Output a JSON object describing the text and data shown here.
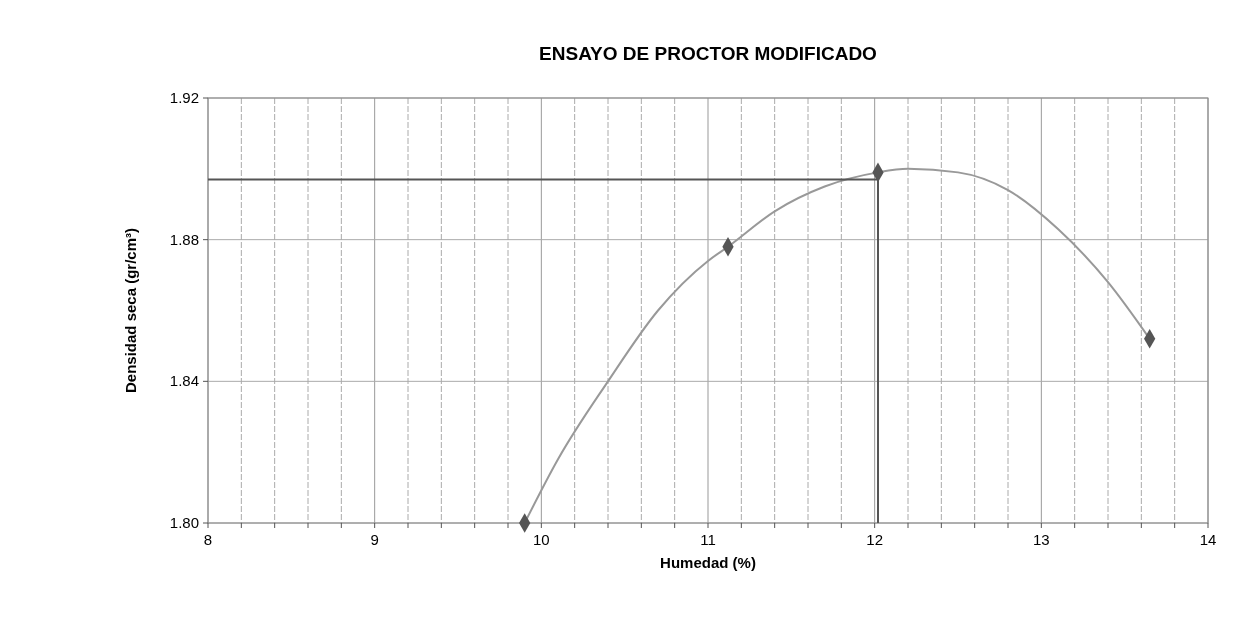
{
  "chart_data": {
    "type": "scatter",
    "title": "ENSAYO DE PROCTOR MODIFICADO",
    "xlabel": "Humedad (%)",
    "ylabel": "Densidad seca (gr/cm³)",
    "xlim": [
      8,
      14
    ],
    "ylim": [
      1.8,
      1.92
    ],
    "xticks": [
      8,
      {
        "value": 8.2,
        "label": null
      },
      {
        "value": 8.4,
        "label": null
      },
      {
        "value": 8.6,
        "label": null
      },
      {
        "value": 8.8,
        "label": null
      },
      9,
      {
        "value": 9.2,
        "label": null
      },
      {
        "value": 9.4,
        "label": null
      },
      {
        "value": 9.6,
        "label": null
      },
      {
        "value": 9.8,
        "label": null
      },
      10,
      {
        "value": 10.2,
        "label": null
      },
      {
        "value": 10.4,
        "label": null
      },
      {
        "value": 10.6,
        "label": null
      },
      {
        "value": 10.8,
        "label": null
      },
      11,
      {
        "value": 11.2,
        "label": null
      },
      {
        "value": 11.4,
        "label": null
      },
      {
        "value": 11.6,
        "label": null
      },
      {
        "value": 11.8,
        "label": null
      },
      12,
      {
        "value": 12.2,
        "label": null
      },
      {
        "value": 12.4,
        "label": null
      },
      {
        "value": 12.6,
        "label": null
      },
      {
        "value": 12.8,
        "label": null
      },
      13,
      {
        "value": 13.2,
        "label": null
      },
      {
        "value": 13.4,
        "label": null
      },
      {
        "value": 13.6,
        "label": null
      },
      {
        "value": 13.8,
        "label": null
      },
      14
    ],
    "yticks": [
      {
        "value": 1.8,
        "label": "1.80"
      },
      1.84,
      1.88,
      1.92
    ],
    "grid": true,
    "series": [
      {
        "type": "line",
        "color": "#999999",
        "marker": "none",
        "x": [
          9.9,
          10.1,
          10.4,
          10.7,
          11.0,
          11.12,
          11.4,
          11.7,
          12.02,
          12.2,
          12.5,
          12.8,
          13.1,
          13.4,
          13.65
        ],
        "values": [
          1.8,
          1.818,
          1.84,
          1.86,
          1.874,
          1.878,
          1.888,
          1.895,
          1.899,
          1.9,
          1.899,
          1.894,
          1.883,
          1.868,
          1.852
        ]
      },
      {
        "type": "line",
        "color": "#555555",
        "marker": "none",
        "x": [
          8,
          12.02,
          12.02
        ],
        "values": [
          1.897,
          1.897,
          1.8
        ]
      },
      {
        "color": "#555555",
        "marker": "diamond",
        "x": [
          9.9,
          11.12,
          12.02,
          13.65
        ],
        "values": [
          1.8,
          1.878,
          1.899,
          1.852
        ]
      }
    ]
  }
}
